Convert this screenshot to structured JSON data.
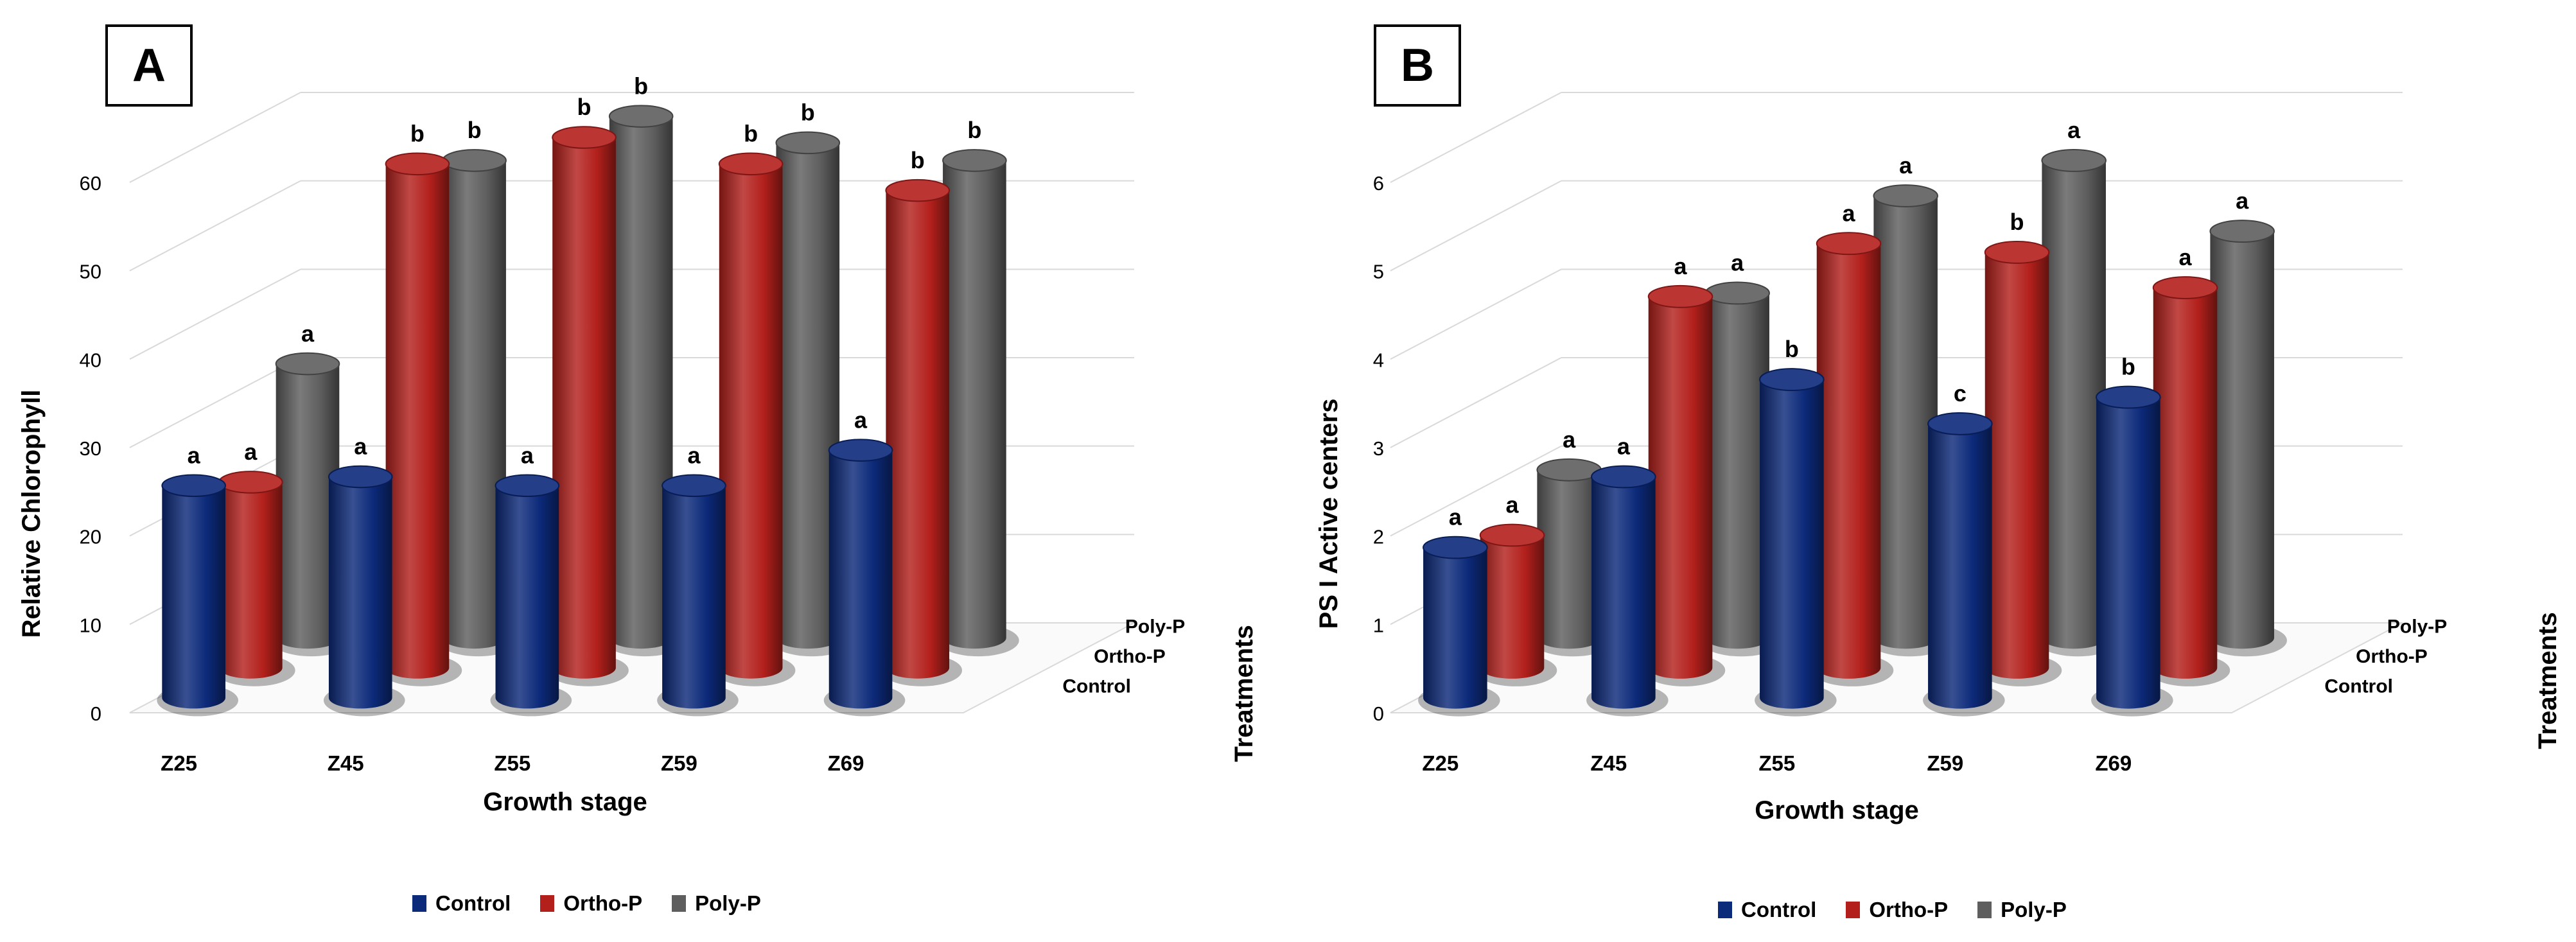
{
  "chart_data": [
    {
      "panel": "A",
      "type": "bar",
      "categories": [
        "Z25",
        "Z45",
        "Z55",
        "Z59",
        "Z69"
      ],
      "depth_categories": [
        "Control",
        "Ortho-P",
        "Poly-P"
      ],
      "xlabel": "Growth stage",
      "ylabel": "Relative Chlorophyll",
      "depth_label": "Treatments",
      "ylim": [
        0,
        60
      ],
      "yticks": [
        "0",
        "10",
        "20",
        "30",
        "40",
        "50",
        "60"
      ],
      "series": [
        {
          "name": "Control",
          "color": "#0c2a7a",
          "values": [
            24,
            25,
            24,
            24,
            28
          ],
          "letters": [
            "a",
            "a",
            "a",
            "a",
            "a"
          ]
        },
        {
          "name": "Ortho-P",
          "color": "#b3201c",
          "values": [
            21,
            57,
            60,
            57,
            54
          ],
          "letters": [
            "a",
            "b",
            "b",
            "b",
            "b"
          ]
        },
        {
          "name": "Poly-P",
          "color": "#5e5e5e",
          "values": [
            31,
            54,
            59,
            56,
            54
          ],
          "letters": [
            "a",
            "b",
            "b",
            "b",
            "b"
          ]
        }
      ],
      "grid": true,
      "legend_position": "bottom"
    },
    {
      "panel": "B",
      "type": "bar",
      "categories": [
        "Z25",
        "Z45",
        "Z55",
        "Z59",
        "Z69"
      ],
      "depth_categories": [
        "Control",
        "Ortho-P",
        "Poly-P"
      ],
      "xlabel": "Growth stage",
      "ylabel": "PS I Active centers",
      "depth_label": "Treatments",
      "ylim": [
        0,
        6
      ],
      "yticks": [
        "0",
        "1",
        "2",
        "3",
        "4",
        "5",
        "6"
      ],
      "series": [
        {
          "name": "Control",
          "color": "#0c2a7a",
          "values": [
            1.7,
            2.5,
            3.6,
            3.1,
            3.4
          ],
          "letters": [
            "a",
            "a",
            "b",
            "c",
            "b"
          ]
        },
        {
          "name": "Ortho-P",
          "color": "#b3201c",
          "values": [
            1.5,
            4.2,
            4.8,
            4.7,
            4.3
          ],
          "letters": [
            "a",
            "a",
            "a",
            "b",
            "a"
          ]
        },
        {
          "name": "Poly-P",
          "color": "#5e5e5e",
          "values": [
            1.9,
            3.9,
            5.0,
            5.4,
            4.6
          ],
          "letters": [
            "a",
            "a",
            "a",
            "a",
            "a"
          ]
        }
      ],
      "grid": true,
      "legend_position": "bottom"
    }
  ],
  "legend": [
    "Control",
    "Ortho-P",
    "Poly-P"
  ],
  "colors": {
    "control": "#0c2a7a",
    "ortho": "#b3201c",
    "poly": "#5e5e5e"
  }
}
